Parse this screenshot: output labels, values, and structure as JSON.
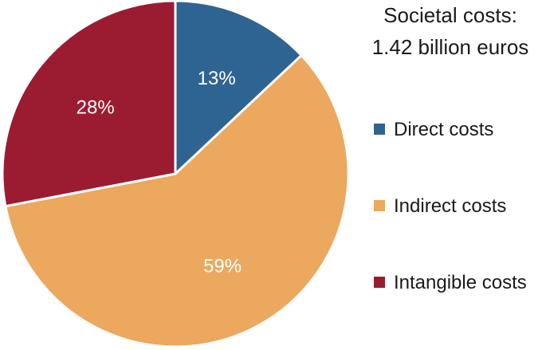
{
  "chart_data": {
    "type": "pie",
    "title_lines": [
      "Societal costs:",
      "1.42 billion euros"
    ],
    "legend_placement": "right",
    "slices": [
      {
        "name": "Direct costs",
        "value": 13,
        "label": "13%",
        "color": "#2e6491"
      },
      {
        "name": "Indirect costs",
        "value": 59,
        "label": "59%",
        "color": "#eba85e"
      },
      {
        "name": "Intangible costs",
        "value": 28,
        "label": "28%",
        "color": "#9b1c31"
      }
    ]
  }
}
